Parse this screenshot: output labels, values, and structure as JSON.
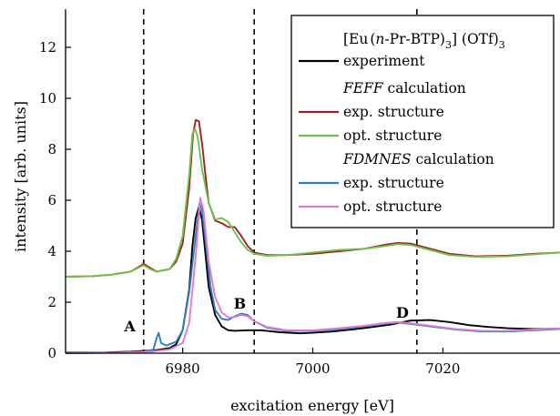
{
  "chart_data": {
    "type": "line",
    "xlabel": "excitation energy [eV]",
    "ylabel": "intensity [arb. units]",
    "xlim": [
      6962,
      7038
    ],
    "ylim": [
      0,
      13.5
    ],
    "x_ticks": [
      6980,
      7000,
      7020
    ],
    "y_ticks": [
      0,
      2,
      4,
      6,
      8,
      10,
      12
    ],
    "grid": false,
    "legend": {
      "placement": "top-right",
      "title": "[Eu (n-Pr-BTP)₃] (OTf)₃",
      "group_feff": "FEFF calculation",
      "group_fdmnes": "FDMNES calculation"
    },
    "vlines": [
      {
        "x": 6974,
        "label": "A",
        "label_y": 0.85
      },
      {
        "x": 6991,
        "label": "B",
        "label_y": 1.75
      },
      {
        "x": 7016,
        "label": "D",
        "label_y": 1.4
      }
    ],
    "series": [
      {
        "name": "experiment",
        "color": "#000000",
        "points": [
          [
            6962,
            0.02
          ],
          [
            6968,
            0.03
          ],
          [
            6972,
            0.06
          ],
          [
            6976,
            0.12
          ],
          [
            6978,
            0.2
          ],
          [
            6979,
            0.35
          ],
          [
            6980,
            0.9
          ],
          [
            6981,
            2.5
          ],
          [
            6981.5,
            4.2
          ],
          [
            6982,
            5.3
          ],
          [
            6982.5,
            5.75
          ],
          [
            6983,
            5.2
          ],
          [
            6983.5,
            3.9
          ],
          [
            6984,
            2.6
          ],
          [
            6985,
            1.5
          ],
          [
            6986,
            1.05
          ],
          [
            6987,
            0.9
          ],
          [
            6988,
            0.88
          ],
          [
            6990,
            0.9
          ],
          [
            6992,
            0.9
          ],
          [
            6995,
            0.82
          ],
          [
            6998,
            0.78
          ],
          [
            7000,
            0.8
          ],
          [
            7003,
            0.85
          ],
          [
            7006,
            0.93
          ],
          [
            7009,
            1.02
          ],
          [
            7012,
            1.12
          ],
          [
            7015,
            1.28
          ],
          [
            7018,
            1.3
          ],
          [
            7021,
            1.22
          ],
          [
            7024,
            1.1
          ],
          [
            7027,
            1.03
          ],
          [
            7030,
            0.98
          ],
          [
            7034,
            0.95
          ],
          [
            7038,
            0.96
          ]
        ]
      },
      {
        "name": "exp. structure",
        "group": "FEFF calculation",
        "color": "#9b2323",
        "points": [
          [
            6962,
            3.0
          ],
          [
            6966,
            3.02
          ],
          [
            6969,
            3.08
          ],
          [
            6972,
            3.2
          ],
          [
            6973,
            3.35
          ],
          [
            6974,
            3.5
          ],
          [
            6975,
            3.35
          ],
          [
            6976,
            3.2
          ],
          [
            6978,
            3.3
          ],
          [
            6979,
            3.6
          ],
          [
            6980,
            4.3
          ],
          [
            6981,
            6.5
          ],
          [
            6981.6,
            8.6
          ],
          [
            6982,
            9.15
          ],
          [
            6982.5,
            9.1
          ],
          [
            6983,
            8.2
          ],
          [
            6983.5,
            7.0
          ],
          [
            6984,
            5.9
          ],
          [
            6985,
            5.2
          ],
          [
            6986,
            5.1
          ],
          [
            6987,
            4.95
          ],
          [
            6988,
            4.95
          ],
          [
            6989,
            4.6
          ],
          [
            6990,
            4.2
          ],
          [
            6991,
            3.95
          ],
          [
            6993,
            3.85
          ],
          [
            6996,
            3.85
          ],
          [
            7000,
            3.9
          ],
          [
            7004,
            4.0
          ],
          [
            7008,
            4.1
          ],
          [
            7011,
            4.25
          ],
          [
            7013,
            4.32
          ],
          [
            7015,
            4.3
          ],
          [
            7018,
            4.1
          ],
          [
            7021,
            3.9
          ],
          [
            7025,
            3.8
          ],
          [
            7030,
            3.83
          ],
          [
            7034,
            3.9
          ],
          [
            7038,
            3.95
          ]
        ]
      },
      {
        "name": "opt. structure",
        "group": "FEFF calculation",
        "color": "#6cc24a",
        "points": [
          [
            6962,
            3.0
          ],
          [
            6966,
            3.02
          ],
          [
            6969,
            3.08
          ],
          [
            6972,
            3.2
          ],
          [
            6973,
            3.33
          ],
          [
            6974,
            3.45
          ],
          [
            6975,
            3.3
          ],
          [
            6976,
            3.2
          ],
          [
            6978,
            3.3
          ],
          [
            6979,
            3.7
          ],
          [
            6980,
            4.6
          ],
          [
            6981,
            7.0
          ],
          [
            6981.5,
            8.6
          ],
          [
            6981.9,
            8.8
          ],
          [
            6982.3,
            8.5
          ],
          [
            6983,
            7.2
          ],
          [
            6984,
            5.9
          ],
          [
            6985,
            5.25
          ],
          [
            6986,
            5.3
          ],
          [
            6987,
            5.15
          ],
          [
            6988,
            4.75
          ],
          [
            6989,
            4.35
          ],
          [
            6990,
            4.05
          ],
          [
            6991,
            3.9
          ],
          [
            6993,
            3.82
          ],
          [
            6996,
            3.85
          ],
          [
            7000,
            3.95
          ],
          [
            7004,
            4.05
          ],
          [
            7008,
            4.1
          ],
          [
            7011,
            4.2
          ],
          [
            7013,
            4.28
          ],
          [
            7015,
            4.25
          ],
          [
            7018,
            4.05
          ],
          [
            7021,
            3.85
          ],
          [
            7025,
            3.78
          ],
          [
            7030,
            3.8
          ],
          [
            7034,
            3.88
          ],
          [
            7038,
            3.95
          ]
        ]
      },
      {
        "name": "exp. structure",
        "group": "FDMNES calculation",
        "color": "#2d7fc1",
        "points": [
          [
            6962,
            0.0
          ],
          [
            6970,
            0.02
          ],
          [
            6974,
            0.05
          ],
          [
            6975.5,
            0.15
          ],
          [
            6976,
            0.6
          ],
          [
            6976.3,
            0.8
          ],
          [
            6976.7,
            0.4
          ],
          [
            6977.5,
            0.3
          ],
          [
            6979,
            0.45
          ],
          [
            6980,
            0.9
          ],
          [
            6981,
            2.4
          ],
          [
            6982,
            4.6
          ],
          [
            6982.6,
            5.9
          ],
          [
            6983,
            5.6
          ],
          [
            6983.6,
            4.2
          ],
          [
            6984.3,
            2.6
          ],
          [
            6985,
            1.7
          ],
          [
            6986,
            1.35
          ],
          [
            6987,
            1.3
          ],
          [
            6988,
            1.45
          ],
          [
            6989,
            1.55
          ],
          [
            6990,
            1.5
          ],
          [
            6991,
            1.25
          ],
          [
            6993,
            1.0
          ],
          [
            6996,
            0.88
          ],
          [
            7000,
            0.88
          ],
          [
            7004,
            0.95
          ],
          [
            7008,
            1.05
          ],
          [
            7011,
            1.15
          ],
          [
            7013,
            1.2
          ],
          [
            7015,
            1.15
          ],
          [
            7018,
            1.05
          ],
          [
            7022,
            0.93
          ],
          [
            7026,
            0.85
          ],
          [
            7030,
            0.85
          ],
          [
            7034,
            0.9
          ],
          [
            7038,
            0.95
          ]
        ]
      },
      {
        "name": "opt. structure",
        "group": "FDMNES calculation",
        "color": "#e27ad1",
        "points": [
          [
            6962,
            0.0
          ],
          [
            6970,
            0.02
          ],
          [
            6975,
            0.06
          ],
          [
            6978,
            0.15
          ],
          [
            6980,
            0.4
          ],
          [
            6981,
            1.2
          ],
          [
            6982,
            3.8
          ],
          [
            6982.7,
            6.1
          ],
          [
            6983.2,
            5.6
          ],
          [
            6984,
            3.6
          ],
          [
            6985,
            2.2
          ],
          [
            6986,
            1.6
          ],
          [
            6987,
            1.4
          ],
          [
            6988,
            1.42
          ],
          [
            6989,
            1.5
          ],
          [
            6990,
            1.45
          ],
          [
            6991,
            1.25
          ],
          [
            6993,
            1.03
          ],
          [
            6996,
            0.9
          ],
          [
            7000,
            0.9
          ],
          [
            7004,
            0.98
          ],
          [
            7008,
            1.08
          ],
          [
            7011,
            1.18
          ],
          [
            7013,
            1.22
          ],
          [
            7015,
            1.18
          ],
          [
            7018,
            1.08
          ],
          [
            7022,
            0.95
          ],
          [
            7026,
            0.88
          ],
          [
            7030,
            0.88
          ],
          [
            7034,
            0.93
          ],
          [
            7038,
            0.97
          ]
        ]
      }
    ]
  }
}
